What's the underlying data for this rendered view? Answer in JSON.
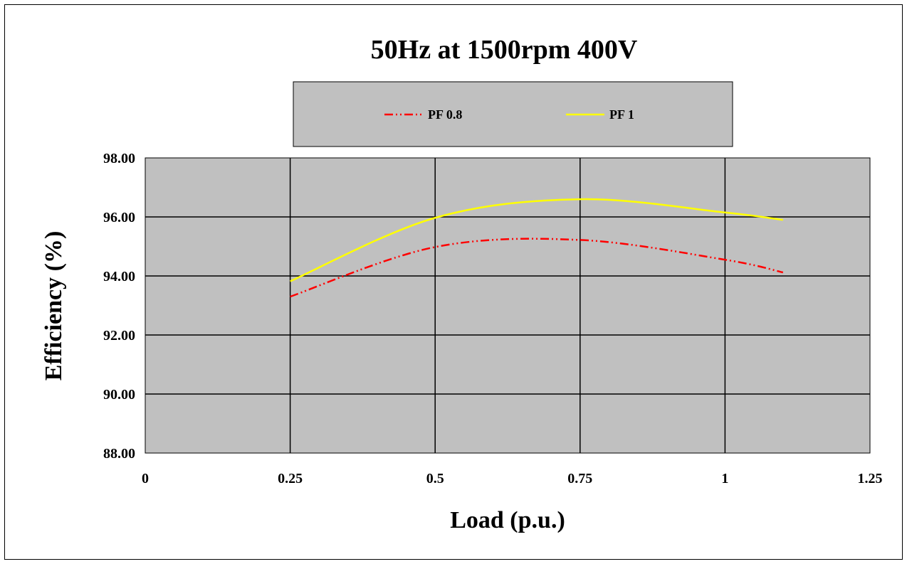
{
  "chart_data": {
    "type": "line",
    "title": "50Hz at 1500rpm 400V",
    "xlabel": "Load (p.u.)",
    "ylabel": "Efficiency (%)",
    "xlim": [
      0,
      1.25
    ],
    "ylim": [
      88,
      98
    ],
    "x_ticks": [
      "0",
      "0.25",
      "0.5",
      "0.75",
      "1",
      "1.25"
    ],
    "y_ticks": [
      "88.00",
      "90.00",
      "92.00",
      "94.00",
      "96.00",
      "98.00"
    ],
    "grid": true,
    "legend_position": "top",
    "plot_background": "#c0c0c0",
    "series": [
      {
        "name": "PF 0.8",
        "color": "#ff0000",
        "line_style": "dash-dot-dot",
        "x": [
          0.25,
          0.5,
          0.75,
          1.0,
          1.1
        ],
        "y": [
          93.3,
          94.98,
          95.22,
          94.55,
          94.12
        ]
      },
      {
        "name": "PF 1",
        "color": "#ffff00",
        "line_style": "solid",
        "x": [
          0.25,
          0.5,
          0.75,
          1.0,
          1.1
        ],
        "y": [
          93.82,
          95.97,
          96.6,
          96.15,
          95.9
        ]
      }
    ]
  }
}
